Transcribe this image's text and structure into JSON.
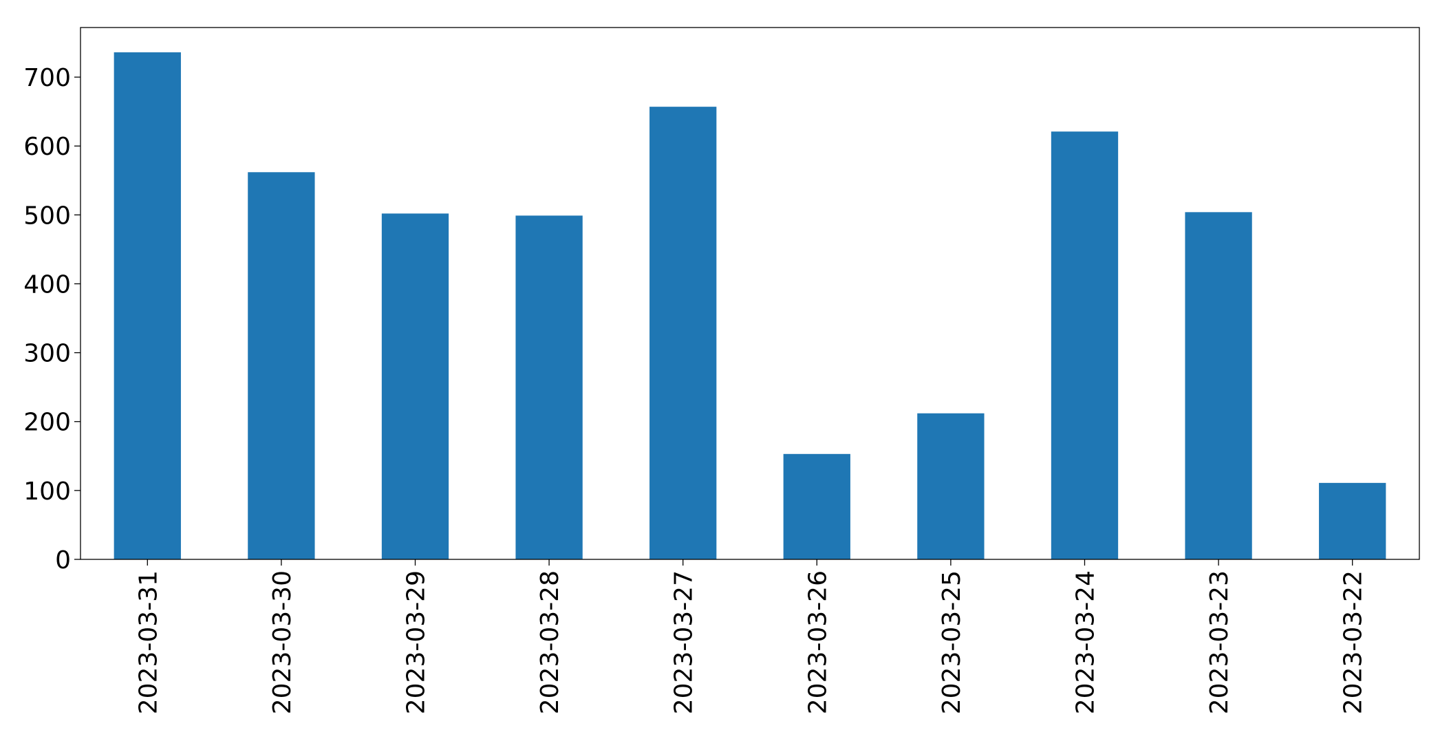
{
  "chart_data": {
    "type": "bar",
    "categories": [
      "2023-03-31",
      "2023-03-30",
      "2023-03-29",
      "2023-03-28",
      "2023-03-27",
      "2023-03-26",
      "2023-03-25",
      "2023-03-24",
      "2023-03-23",
      "2023-03-22"
    ],
    "values": [
      736,
      562,
      502,
      499,
      657,
      153,
      212,
      621,
      504,
      111
    ],
    "color": "#1f77b4",
    "ylim": [
      0,
      772
    ],
    "yticks": [
      0,
      100,
      200,
      300,
      400,
      500,
      600,
      700
    ],
    "grid": false
  }
}
